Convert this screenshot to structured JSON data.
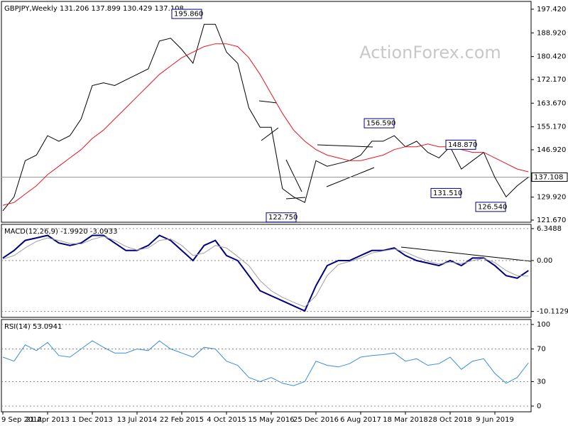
{
  "chart_data": [
    {
      "type": "line",
      "title": "GBPJPY,Weekly  131.206 137.899 130.429 137.108",
      "watermark": "ActionForex.com",
      "categories": [
        "9 Sep 2012",
        null,
        null,
        null,
        "21 Apr 2013",
        null,
        null,
        null,
        "1 Dec 2013",
        null,
        null,
        null,
        "13 Jul 2014",
        null,
        null,
        null,
        "22 Feb 2015",
        null,
        null,
        null,
        "4 Oct 2015",
        null,
        null,
        null,
        "15 May 2016",
        null,
        null,
        null,
        "25 Dec 2016",
        null,
        null,
        null,
        "6 Aug 2017",
        null,
        null,
        null,
        "18 Mar 2018",
        null,
        null,
        null,
        "28 Oct 2018",
        null,
        null,
        null,
        "9 Jun 2019",
        null,
        null,
        null
      ],
      "series": [
        {
          "name": "GBPJPY",
          "color": "#000000",
          "values": [
            125,
            130,
            143,
            145,
            152,
            150,
            152,
            158,
            170,
            171,
            170,
            172,
            174,
            176,
            186,
            187,
            183,
            178,
            192,
            192,
            182,
            178,
            162,
            155,
            155,
            133,
            130,
            128,
            143,
            141,
            142,
            143,
            145,
            150,
            150,
            152,
            148,
            150,
            146,
            144,
            148,
            140,
            143,
            146,
            137,
            130,
            134,
            137.108
          ]
        },
        {
          "name": "MA",
          "color": "#e8141c",
          "values": [
            127,
            128,
            131,
            134,
            138,
            141,
            144,
            147,
            151,
            154,
            158,
            162,
            166,
            170,
            174,
            177,
            180,
            182,
            184,
            185,
            185,
            184,
            180,
            174,
            167,
            160,
            154,
            150,
            147,
            145,
            144,
            143,
            143,
            144,
            145,
            147,
            148,
            148,
            149,
            148,
            148,
            147,
            146,
            146,
            144,
            142,
            140,
            139
          ]
        }
      ],
      "annotations": [
        {
          "value": 195.86,
          "label": "195.860"
        },
        {
          "value": 122.75,
          "label": "122.750"
        },
        {
          "value": 156.59,
          "label": "156.590"
        },
        {
          "value": 148.87,
          "label": "148.870"
        },
        {
          "value": 131.51,
          "label": "131.510"
        },
        {
          "value": 126.54,
          "label": "126.540"
        }
      ],
      "last": {
        "value": 137.108,
        "label": "137.108"
      },
      "ylim": [
        120.9,
        200.22
      ],
      "yticks": [
        {
          "value": 197.42,
          "label": "197.420"
        },
        {
          "value": 188.92,
          "label": "188.920"
        },
        {
          "value": 180.42,
          "label": "180.420"
        },
        {
          "value": 172.17,
          "label": "172.170"
        },
        {
          "value": 163.67,
          "label": "163.670"
        },
        {
          "value": 155.17,
          "label": "155.170"
        },
        {
          "value": 146.92,
          "label": "146.920"
        },
        {
          "value": 129.92,
          "label": "129.920"
        },
        {
          "value": 121.67,
          "label": "121.670"
        }
      ],
      "grid": false
    },
    {
      "type": "line",
      "title": "MACD(12,26,9) -1.9920 -3.0933",
      "series": [
        {
          "name": "MACD",
          "color": "#000080",
          "values": [
            0.5,
            2,
            4,
            4.5,
            5,
            3.5,
            3,
            3.5,
            5,
            5,
            3.5,
            2,
            2,
            3,
            5,
            4,
            2,
            0,
            3,
            4,
            1,
            0,
            -3,
            -6,
            -7,
            -8,
            -9,
            -10,
            -5,
            -1,
            0,
            0,
            1,
            2,
            2,
            2.5,
            1,
            0,
            -0.5,
            -1,
            0,
            -1,
            0.5,
            0.5,
            -1,
            -3,
            -3.5,
            -2
          ]
        },
        {
          "name": "Signal",
          "color": "#a0a0a0",
          "values": [
            0.3,
            1,
            2.5,
            3.8,
            4.5,
            4,
            3.4,
            3.3,
            4.2,
            4.8,
            4,
            2.8,
            2.1,
            2.5,
            4,
            4.3,
            3,
            1,
            1.5,
            3,
            2.5,
            0.8,
            -1,
            -4,
            -6,
            -7.3,
            -8.3,
            -9.2,
            -7,
            -3,
            -0.8,
            -0.2,
            0.5,
            1.5,
            1.9,
            2.3,
            1.7,
            0.7,
            -0.1,
            -0.7,
            -0.3,
            -0.6,
            0,
            0.4,
            -0.4,
            -2,
            -3,
            -3.1
          ]
        }
      ],
      "ylim": [
        -11.29,
        7.19
      ],
      "yticks": [
        6.3488,
        {
          "value": 0,
          "label": "0.00"
        },
        -10.1129
      ],
      "grid": true
    },
    {
      "type": "line",
      "title": "RSI(14) 53.0941",
      "series": [
        {
          "name": "RSI",
          "color": "#3a8ed8",
          "values": [
            60,
            55,
            75,
            68,
            78,
            62,
            60,
            70,
            80,
            72,
            65,
            65,
            70,
            68,
            80,
            70,
            65,
            60,
            72,
            70,
            55,
            50,
            35,
            30,
            35,
            28,
            25,
            30,
            55,
            50,
            48,
            52,
            60,
            62,
            63,
            65,
            55,
            58,
            50,
            52,
            60,
            45,
            55,
            58,
            40,
            28,
            35,
            53
          ]
        }
      ],
      "ylim": [
        -7,
        106.1
      ],
      "yticks": [
        0,
        30,
        70,
        100
      ],
      "grid": true
    }
  ]
}
